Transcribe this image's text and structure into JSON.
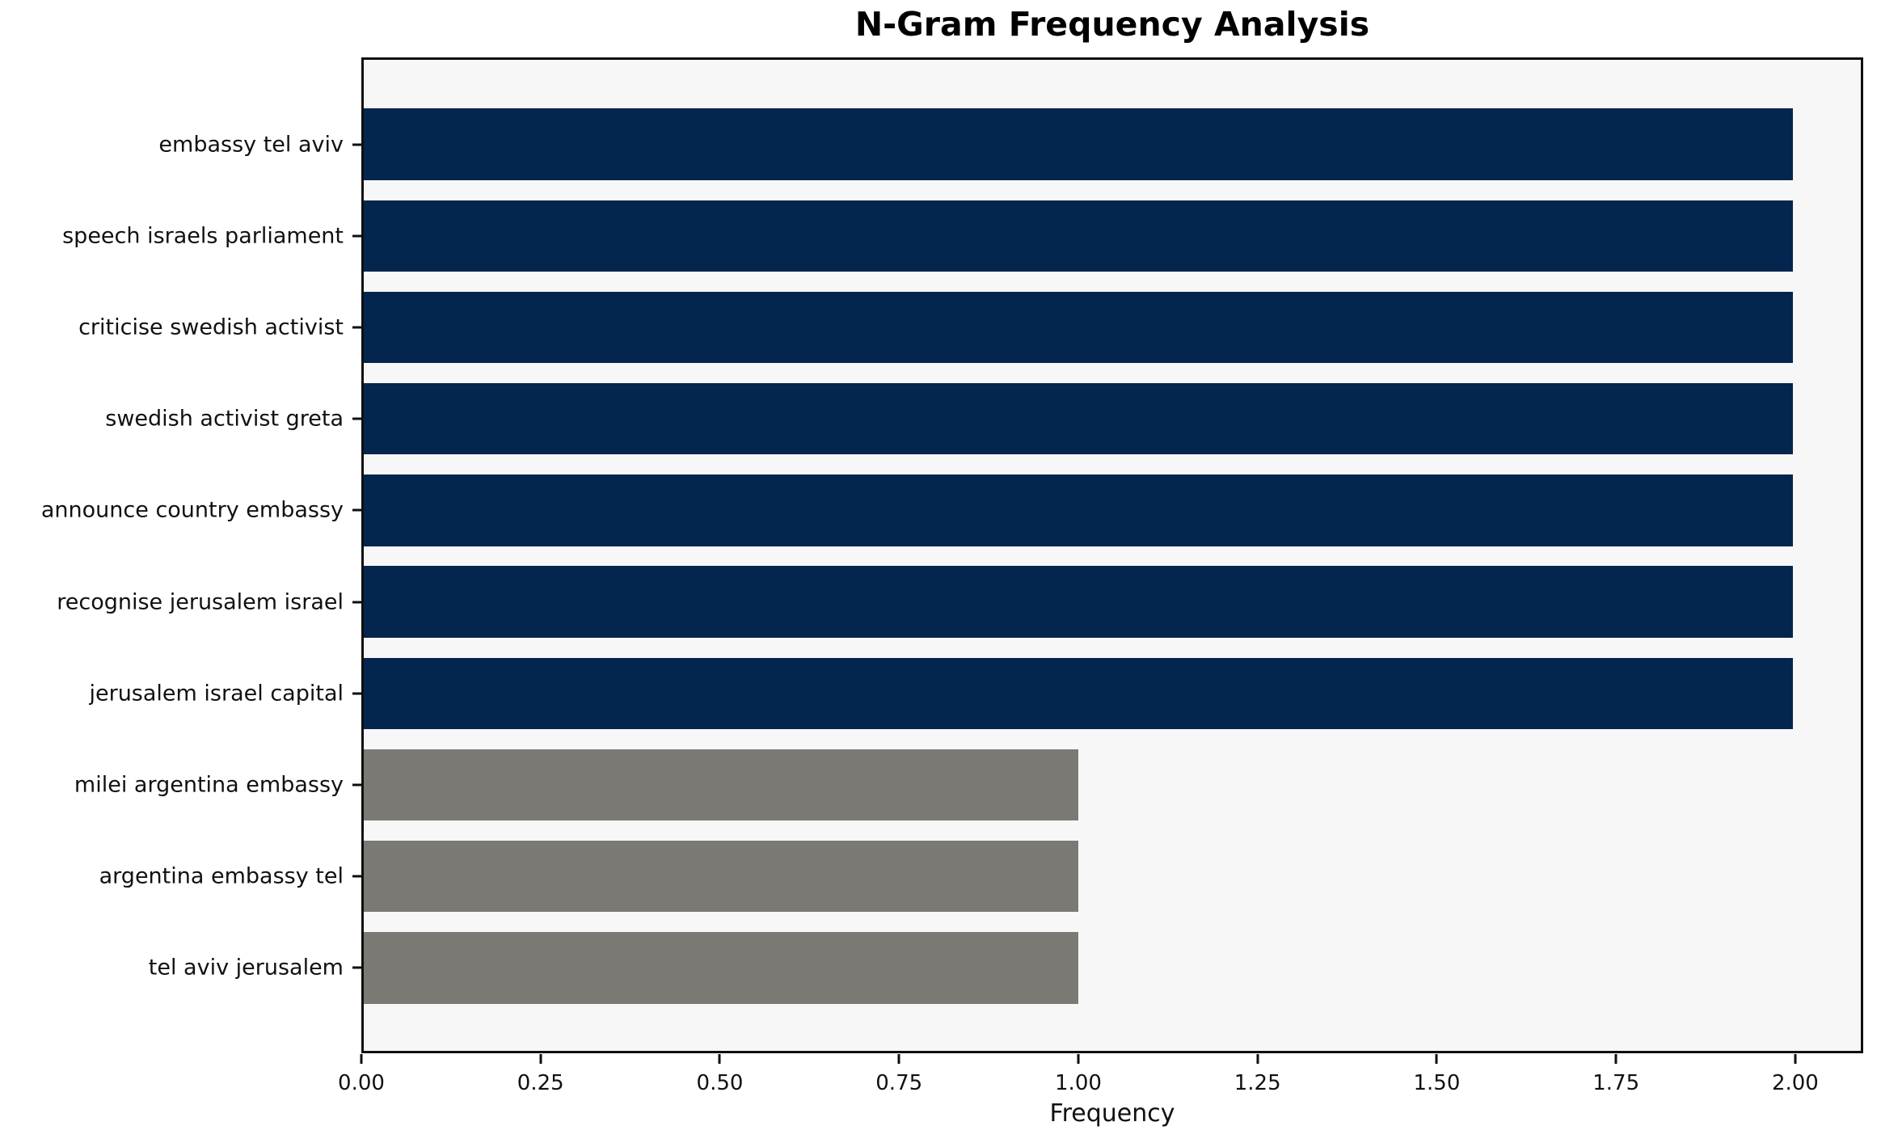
{
  "chart_data": {
    "type": "bar",
    "orientation": "horizontal",
    "title": "N-Gram Frequency Analysis",
    "xlabel": "Frequency",
    "ylabel": "",
    "categories": [
      "embassy tel aviv",
      "speech israels parliament",
      "criticise swedish activist",
      "swedish activist greta",
      "announce country embassy",
      "recognise jerusalem israel",
      "jerusalem israel capital",
      "milei argentina embassy",
      "argentina embassy tel",
      "tel aviv jerusalem"
    ],
    "values": [
      2,
      2,
      2,
      2,
      2,
      2,
      2,
      1,
      1,
      1
    ],
    "bar_colors": [
      "#04254e",
      "#04254e",
      "#04254e",
      "#04254e",
      "#04254e",
      "#04254e",
      "#04254e",
      "#7a7974",
      "#7a7974",
      "#7a7974"
    ],
    "xticks": [
      {
        "value": 0.0,
        "label": "0.00"
      },
      {
        "value": 0.25,
        "label": "0.25"
      },
      {
        "value": 0.5,
        "label": "0.50"
      },
      {
        "value": 0.75,
        "label": "0.75"
      },
      {
        "value": 1.0,
        "label": "1.00"
      },
      {
        "value": 1.25,
        "label": "1.25"
      },
      {
        "value": 1.5,
        "label": "1.50"
      },
      {
        "value": 1.75,
        "label": "1.75"
      },
      {
        "value": 2.0,
        "label": "2.00"
      }
    ],
    "xlim": [
      0,
      2.0948
    ],
    "grid": false,
    "legend_position": "none",
    "plot_background": "#f7f7f7",
    "colors": {
      "primary_bar": "#04254e",
      "secondary_bar": "#7a7974",
      "spine": "#0f0f0f",
      "text": "#111111"
    }
  }
}
